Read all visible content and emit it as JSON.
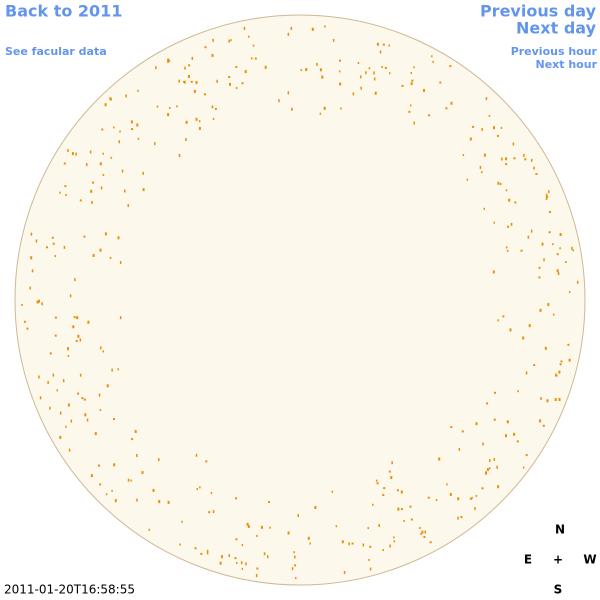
{
  "nav": {
    "back_year": "Back to 2011",
    "previous_day": "Previous day",
    "next_day": "Next day",
    "facular_data": "See facular data",
    "previous_hour": "Previous hour",
    "next_hour": "Next hour"
  },
  "timestamp": "2011-01-20T16:58:55",
  "compass": {
    "north": "N",
    "east": "E",
    "center": "+",
    "west": "W",
    "south": "S"
  }
}
